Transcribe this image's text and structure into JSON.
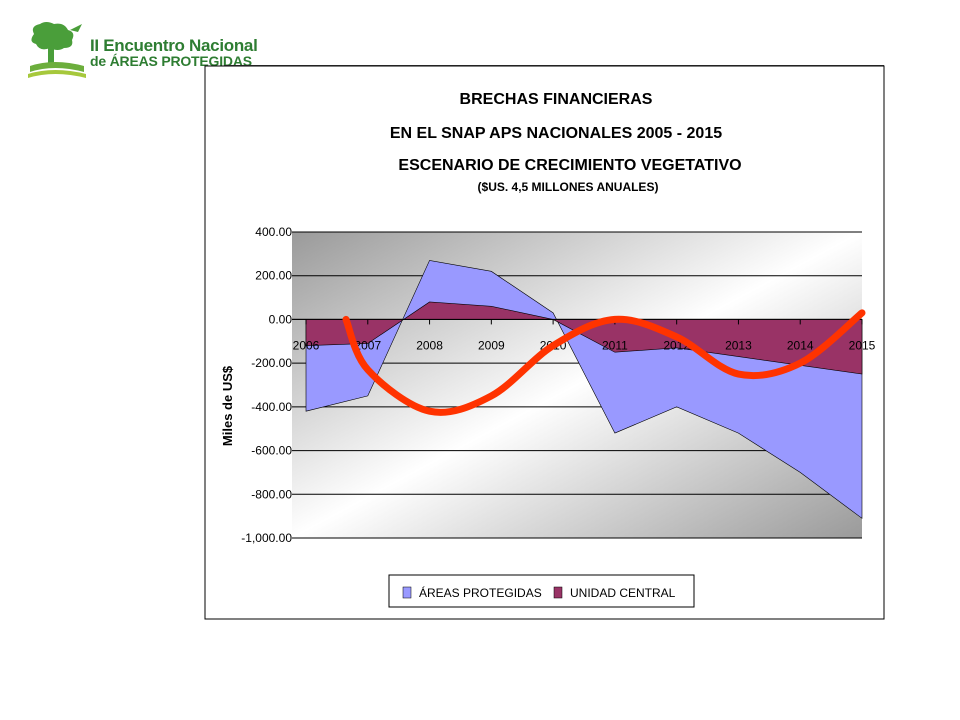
{
  "logo": {
    "line1": "II Encuentro Nacional",
    "line2": "de ÁREAS PROTEGIDAS"
  },
  "colors": {
    "areas_protegidas": "#9999ff",
    "unidad_central": "#993366",
    "trend_line": "#ff3300",
    "logo_green": "#2e7d32"
  },
  "chart_data": {
    "type": "area",
    "title": "BRECHAS FINANCIERAS",
    "subtitle1": "EN EL SNAP APS NACIONALES 2005 - 2015",
    "subtitle2": "ESCENARIO DE CRECIMIENTO VEGETATIVO",
    "subtitle3": "($US. 4,5 MILLONES ANUALES)",
    "ylabel": "Miles de US$",
    "xlabel": "",
    "ylim": [
      -1000,
      400
    ],
    "y_ticks": [
      "400.00",
      "200.00",
      "0.00",
      "-200.00",
      "-400.00",
      "-600.00",
      "-800.00",
      "-1,000.00"
    ],
    "y_tick_values": [
      400,
      200,
      0,
      -200,
      -400,
      -600,
      -800,
      -1000
    ],
    "categories": [
      "2006",
      "2007",
      "2008",
      "2009",
      "2010",
      "2011",
      "2012",
      "2013",
      "2014",
      "2015"
    ],
    "series": [
      {
        "name": "ÁREAS PROTEGIDAS",
        "values": [
          -420,
          -350,
          270,
          220,
          30,
          -520,
          -400,
          -520,
          -700,
          -910
        ]
      },
      {
        "name": "UNIDAD CENTRAL",
        "values": [
          -120,
          -110,
          80,
          60,
          0,
          -150,
          -130,
          -170,
          -210,
          -250
        ]
      }
    ],
    "trend_values": [
      0,
      -230,
      -420,
      -350,
      -120,
      0,
      -80,
      -250,
      -200,
      30
    ],
    "legend_position": "bottom",
    "grid": true
  }
}
